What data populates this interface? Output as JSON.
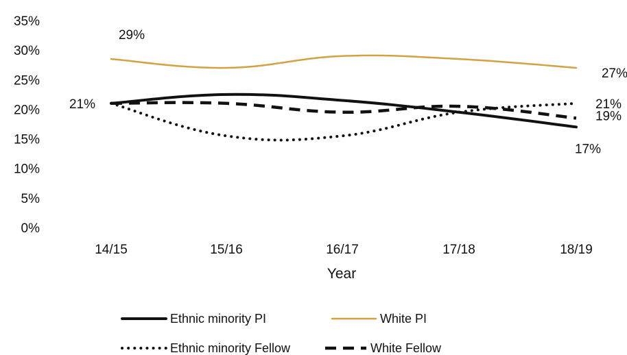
{
  "chart_data": {
    "type": "line",
    "title": "",
    "xlabel": "Year",
    "ylabel": "",
    "categories": [
      "14/15",
      "15/16",
      "16/17",
      "17/18",
      "18/19"
    ],
    "ylim": [
      0,
      35
    ],
    "y_ticks": [
      "0%",
      "5%",
      "10%",
      "15%",
      "20%",
      "25%",
      "30%",
      "35%"
    ],
    "grid": false,
    "legend_position": "bottom",
    "series": [
      {
        "name": "Ethnic minority PI",
        "values": [
          21,
          22.5,
          21.5,
          19.5,
          17
        ],
        "color": "#111111",
        "style": "solid"
      },
      {
        "name": "White PI",
        "values": [
          28.5,
          27,
          29,
          28.5,
          27
        ],
        "color": "#d4a040",
        "style": "solid"
      },
      {
        "name": "Ethnic minority Fellow",
        "values": [
          21,
          15.5,
          15.5,
          19.5,
          21
        ],
        "color": "#111111",
        "style": "dotted"
      },
      {
        "name": "White Fellow",
        "values": [
          21,
          21,
          19.5,
          20.5,
          18.5
        ],
        "color": "#111111",
        "style": "dashed"
      }
    ],
    "data_labels": [
      {
        "text": "29%",
        "series": 1,
        "index": 0
      },
      {
        "text": "27%",
        "series": 1,
        "index": 4
      },
      {
        "text": "21%",
        "series": 0,
        "index": 0
      },
      {
        "text": "21%",
        "series": 2,
        "index": 4
      },
      {
        "text": "19%",
        "series": 3,
        "index": 4
      },
      {
        "text": "17%",
        "series": 0,
        "index": 4
      }
    ]
  }
}
